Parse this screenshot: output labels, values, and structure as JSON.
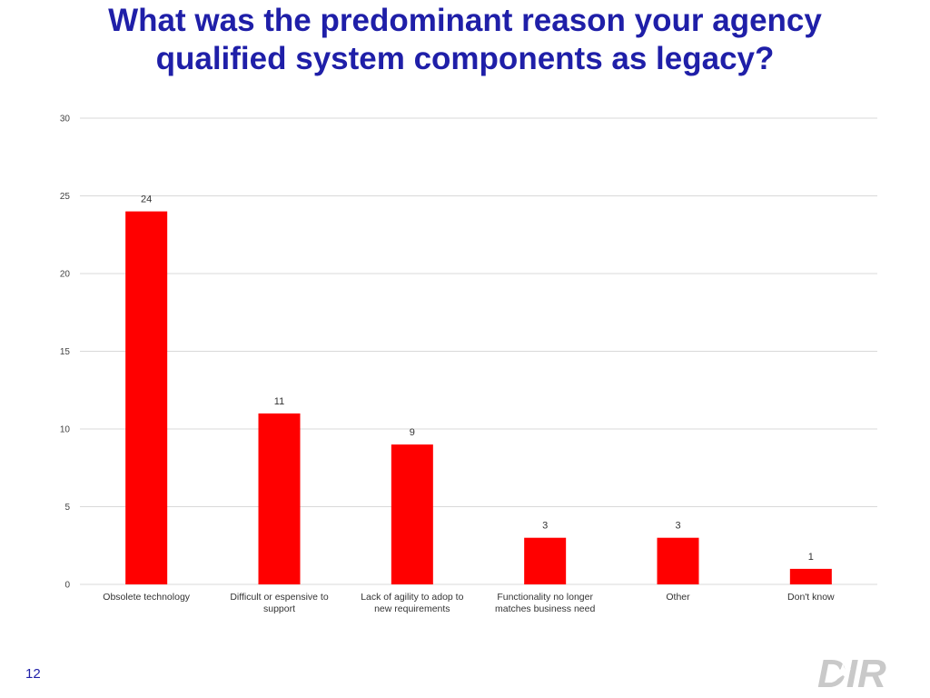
{
  "slide": {
    "title_line1": "What was the predominant reason your agency",
    "title_line2": "qualified system components as legacy?",
    "page_number": "12",
    "logo_text": "DIR",
    "title_color": "#1f1fa8"
  },
  "chart_data": {
    "type": "bar",
    "categories": [
      [
        "Obsolete technology"
      ],
      [
        "Difficult or espensive to",
        "support"
      ],
      [
        "Lack of agility to adop to",
        "new requirements"
      ],
      [
        "Functionality no longer",
        "matches business need"
      ],
      [
        "Other"
      ],
      [
        "Don't know"
      ]
    ],
    "values": [
      24,
      11,
      9,
      3,
      3,
      1
    ],
    "data_labels": [
      "24",
      "11",
      "9",
      "3",
      "3",
      "1"
    ],
    "yticks": [
      0,
      5,
      10,
      15,
      20,
      25,
      30
    ],
    "ylim": [
      0,
      30
    ],
    "bar_color": "#ff0000",
    "grid": true,
    "legend": "none"
  }
}
